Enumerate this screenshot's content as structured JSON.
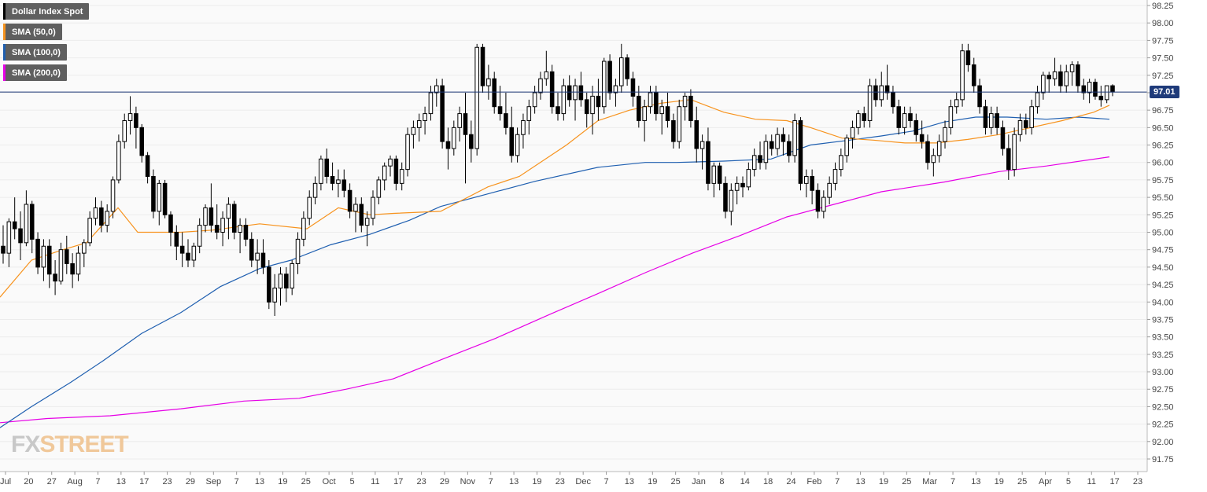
{
  "legend": [
    {
      "label": "Dollar Index Spot",
      "color": "#000000"
    },
    {
      "label": "SMA (50,0)",
      "color": "#f7931e"
    },
    {
      "label": "SMA (100,0)",
      "color": "#1f5fb0"
    },
    {
      "label": "SMA (200,0)",
      "color": "#e600e6"
    }
  ],
  "price_label": "97.01",
  "logo": {
    "part1": "FX",
    "part2": "STREET"
  },
  "chart_data": {
    "type": "candlestick",
    "title": "",
    "ylim": [
      91.5,
      98.35
    ],
    "y_ticks": [
      "98.25",
      "98.00",
      "97.75",
      "97.50",
      "97.25",
      "97.00",
      "96.75",
      "96.50",
      "96.25",
      "96.00",
      "95.75",
      "95.50",
      "95.25",
      "95.00",
      "94.75",
      "94.50",
      "94.25",
      "94.00",
      "93.75",
      "93.50",
      "93.25",
      "93.00",
      "92.75",
      "92.50",
      "92.25",
      "92.00",
      "91.75"
    ],
    "x_ticks": [
      "Jul",
      "20",
      "27",
      "Aug",
      "7",
      "13",
      "17",
      "23",
      "29",
      "Sep",
      "7",
      "13",
      "19",
      "25",
      "Oct",
      "5",
      "11",
      "17",
      "23",
      "29",
      "Nov",
      "7",
      "13",
      "19",
      "23",
      "Dec",
      "7",
      "13",
      "19",
      "25",
      "Jan",
      "8",
      "14",
      "18",
      "24",
      "Feb",
      "7",
      "13",
      "19",
      "25",
      "Mar",
      "7",
      "13",
      "19",
      "25",
      "Apr",
      "5",
      "11",
      "17",
      "23"
    ],
    "current_price": 97.01,
    "candles": [
      [
        94.8,
        95.1,
        94.55,
        94.7
      ],
      [
        94.7,
        95.2,
        94.5,
        95.15
      ],
      [
        95.15,
        95.5,
        94.9,
        95.05
      ],
      [
        95.05,
        95.3,
        94.6,
        94.85
      ],
      [
        94.85,
        95.6,
        94.8,
        95.4
      ],
      [
        95.4,
        95.45,
        94.7,
        94.9
      ],
      [
        94.9,
        95.0,
        94.4,
        94.5
      ],
      [
        94.5,
        94.9,
        94.3,
        94.8
      ],
      [
        94.8,
        94.9,
        94.2,
        94.4
      ],
      [
        94.4,
        94.6,
        94.1,
        94.3
      ],
      [
        94.3,
        94.85,
        94.25,
        94.75
      ],
      [
        94.75,
        94.95,
        94.4,
        94.55
      ],
      [
        94.55,
        94.7,
        94.2,
        94.4
      ],
      [
        94.4,
        94.8,
        94.3,
        94.7
      ],
      [
        94.7,
        94.9,
        94.5,
        94.85
      ],
      [
        94.85,
        95.3,
        94.8,
        95.2
      ],
      [
        95.2,
        95.5,
        95.1,
        95.35
      ],
      [
        95.35,
        95.45,
        95.0,
        95.1
      ],
      [
        95.1,
        95.4,
        95.0,
        95.3
      ],
      [
        95.3,
        95.8,
        95.2,
        95.75
      ],
      [
        95.75,
        96.4,
        95.7,
        96.3
      ],
      [
        96.3,
        96.7,
        96.2,
        96.6
      ],
      [
        96.6,
        96.95,
        96.4,
        96.7
      ],
      [
        96.7,
        96.8,
        96.2,
        96.5
      ],
      [
        96.5,
        96.55,
        96.0,
        96.1
      ],
      [
        96.1,
        96.15,
        95.7,
        95.8
      ],
      [
        95.8,
        95.9,
        95.2,
        95.3
      ],
      [
        95.3,
        95.75,
        95.1,
        95.7
      ],
      [
        95.7,
        95.75,
        95.2,
        95.25
      ],
      [
        95.25,
        95.3,
        94.8,
        95.0
      ],
      [
        95.0,
        95.1,
        94.6,
        94.8
      ],
      [
        94.8,
        95.0,
        94.5,
        94.7
      ],
      [
        94.7,
        94.9,
        94.5,
        94.6
      ],
      [
        94.6,
        94.85,
        94.5,
        94.8
      ],
      [
        94.8,
        95.2,
        94.7,
        95.1
      ],
      [
        95.1,
        95.4,
        95.0,
        95.35
      ],
      [
        95.35,
        95.7,
        95.0,
        95.1
      ],
      [
        95.1,
        95.4,
        94.9,
        95.0
      ],
      [
        95.0,
        95.3,
        94.8,
        95.2
      ],
      [
        95.2,
        95.5,
        94.9,
        95.4
      ],
      [
        95.4,
        95.45,
        94.9,
        95.0
      ],
      [
        95.0,
        95.2,
        94.7,
        95.1
      ],
      [
        95.1,
        95.2,
        94.8,
        94.9
      ],
      [
        94.9,
        95.0,
        94.5,
        94.6
      ],
      [
        94.6,
        94.9,
        94.4,
        94.7
      ],
      [
        94.7,
        94.9,
        94.4,
        94.5
      ],
      [
        94.5,
        94.6,
        93.9,
        94.0
      ],
      [
        94.0,
        94.4,
        93.8,
        94.2
      ],
      [
        94.2,
        94.5,
        93.95,
        94.4
      ],
      [
        94.4,
        94.5,
        94.0,
        94.2
      ],
      [
        94.2,
        94.6,
        94.1,
        94.55
      ],
      [
        94.55,
        95.0,
        94.4,
        94.9
      ],
      [
        94.9,
        95.3,
        94.8,
        95.2
      ],
      [
        95.2,
        95.6,
        95.1,
        95.5
      ],
      [
        95.5,
        95.8,
        95.4,
        95.7
      ],
      [
        95.7,
        96.1,
        95.6,
        96.05
      ],
      [
        96.05,
        96.2,
        95.7,
        95.8
      ],
      [
        95.8,
        96.0,
        95.6,
        95.7
      ],
      [
        95.7,
        95.9,
        95.5,
        95.75
      ],
      [
        95.75,
        95.9,
        95.5,
        95.6
      ],
      [
        95.6,
        95.7,
        95.2,
        95.3
      ],
      [
        95.3,
        95.5,
        95.0,
        95.4
      ],
      [
        95.4,
        95.5,
        95.0,
        95.1
      ],
      [
        95.1,
        95.3,
        94.8,
        95.2
      ],
      [
        95.2,
        95.6,
        95.1,
        95.5
      ],
      [
        95.5,
        95.8,
        95.4,
        95.75
      ],
      [
        95.75,
        96.0,
        95.6,
        95.95
      ],
      [
        95.95,
        96.1,
        95.8,
        96.05
      ],
      [
        96.05,
        96.1,
        95.6,
        95.7
      ],
      [
        95.7,
        96.0,
        95.6,
        95.9
      ],
      [
        95.9,
        96.5,
        95.8,
        96.4
      ],
      [
        96.4,
        96.6,
        96.2,
        96.5
      ],
      [
        96.5,
        96.7,
        96.3,
        96.6
      ],
      [
        96.6,
        96.8,
        96.4,
        96.7
      ],
      [
        96.7,
        97.1,
        96.6,
        97.0
      ],
      [
        97.0,
        97.2,
        96.8,
        97.1
      ],
      [
        97.1,
        97.2,
        96.2,
        96.3
      ],
      [
        96.3,
        96.5,
        95.9,
        96.2
      ],
      [
        96.2,
        96.6,
        96.1,
        96.5
      ],
      [
        96.5,
        96.8,
        96.3,
        96.7
      ],
      [
        96.7,
        97.0,
        95.7,
        96.4
      ],
      [
        96.4,
        96.6,
        96.0,
        96.2
      ],
      [
        96.2,
        97.7,
        96.1,
        97.65
      ],
      [
        97.65,
        97.7,
        97.0,
        97.1
      ],
      [
        97.1,
        97.4,
        96.9,
        97.2
      ],
      [
        97.2,
        97.3,
        96.7,
        96.8
      ],
      [
        96.8,
        97.1,
        96.6,
        96.7
      ],
      [
        96.7,
        97.0,
        96.4,
        96.5
      ],
      [
        96.5,
        96.8,
        96.0,
        96.1
      ],
      [
        96.1,
        96.5,
        96.0,
        96.4
      ],
      [
        96.4,
        96.7,
        96.2,
        96.6
      ],
      [
        96.6,
        96.9,
        96.4,
        96.8
      ],
      [
        96.8,
        97.1,
        96.7,
        97.0
      ],
      [
        97.0,
        97.3,
        96.9,
        97.2
      ],
      [
        97.2,
        97.6,
        97.1,
        97.3
      ],
      [
        97.3,
        97.4,
        96.7,
        96.8
      ],
      [
        96.8,
        97.0,
        96.6,
        96.7
      ],
      [
        96.7,
        97.2,
        96.6,
        97.1
      ],
      [
        97.1,
        97.25,
        96.8,
        96.9
      ],
      [
        96.9,
        97.2,
        96.6,
        97.1
      ],
      [
        97.1,
        97.3,
        96.8,
        96.9
      ],
      [
        96.9,
        97.0,
        96.5,
        96.7
      ],
      [
        96.7,
        97.1,
        96.4,
        96.95
      ],
      [
        96.95,
        97.2,
        96.6,
        96.8
      ],
      [
        96.8,
        97.5,
        96.7,
        97.45
      ],
      [
        97.45,
        97.55,
        96.9,
        97.0
      ],
      [
        97.0,
        97.2,
        96.8,
        97.1
      ],
      [
        97.1,
        97.7,
        97.0,
        97.5
      ],
      [
        97.5,
        97.55,
        97.1,
        97.2
      ],
      [
        97.2,
        97.3,
        96.8,
        96.95
      ],
      [
        96.95,
        97.1,
        96.5,
        96.6
      ],
      [
        96.6,
        96.9,
        96.3,
        96.8
      ],
      [
        96.8,
        97.1,
        96.7,
        97.0
      ],
      [
        97.0,
        97.1,
        96.6,
        96.7
      ],
      [
        96.7,
        96.9,
        96.4,
        96.8
      ],
      [
        96.8,
        97.0,
        96.5,
        96.6
      ],
      [
        96.6,
        96.7,
        96.2,
        96.3
      ],
      [
        96.3,
        96.9,
        96.2,
        96.8
      ],
      [
        96.8,
        97.0,
        96.6,
        96.95
      ],
      [
        96.95,
        97.05,
        96.5,
        96.6
      ],
      [
        96.6,
        96.8,
        96.0,
        96.2
      ],
      [
        96.2,
        96.4,
        95.9,
        96.3
      ],
      [
        96.3,
        96.5,
        95.6,
        95.7
      ],
      [
        95.7,
        96.0,
        95.5,
        95.95
      ],
      [
        95.95,
        96.0,
        95.6,
        95.7
      ],
      [
        95.7,
        95.8,
        95.2,
        95.3
      ],
      [
        95.3,
        95.7,
        95.1,
        95.6
      ],
      [
        95.6,
        95.8,
        95.4,
        95.7
      ],
      [
        95.7,
        95.8,
        95.5,
        95.65
      ],
      [
        95.65,
        96.0,
        95.6,
        95.9
      ],
      [
        95.9,
        96.2,
        95.8,
        96.1
      ],
      [
        96.1,
        96.3,
        95.9,
        96.0
      ],
      [
        96.0,
        96.4,
        95.9,
        96.3
      ],
      [
        96.3,
        96.4,
        96.1,
        96.2
      ],
      [
        96.2,
        96.5,
        96.1,
        96.4
      ],
      [
        96.4,
        96.5,
        96.1,
        96.3
      ],
      [
        96.3,
        96.4,
        96.0,
        96.1
      ],
      [
        96.1,
        96.7,
        96.0,
        96.6
      ],
      [
        96.6,
        96.65,
        95.6,
        95.7
      ],
      [
        95.7,
        95.9,
        95.5,
        95.8
      ],
      [
        95.8,
        95.9,
        95.4,
        95.6
      ],
      [
        95.6,
        95.7,
        95.2,
        95.3
      ],
      [
        95.3,
        95.6,
        95.2,
        95.5
      ],
      [
        95.5,
        95.8,
        95.4,
        95.7
      ],
      [
        95.7,
        96.0,
        95.6,
        95.9
      ],
      [
        95.9,
        96.2,
        95.8,
        96.1
      ],
      [
        96.1,
        96.4,
        96.0,
        96.35
      ],
      [
        96.35,
        96.6,
        96.2,
        96.5
      ],
      [
        96.5,
        96.75,
        96.4,
        96.7
      ],
      [
        96.7,
        96.8,
        96.5,
        96.6
      ],
      [
        96.6,
        97.2,
        96.5,
        97.1
      ],
      [
        97.1,
        97.2,
        96.8,
        96.9
      ],
      [
        96.9,
        97.3,
        96.8,
        97.1
      ],
      [
        97.1,
        97.4,
        96.9,
        97.0
      ],
      [
        97.0,
        97.1,
        96.7,
        96.8
      ],
      [
        96.8,
        96.9,
        96.4,
        96.5
      ],
      [
        96.5,
        96.8,
        96.4,
        96.7
      ],
      [
        96.7,
        96.8,
        96.5,
        96.6
      ],
      [
        96.6,
        96.7,
        96.3,
        96.4
      ],
      [
        96.4,
        96.6,
        96.2,
        96.3
      ],
      [
        96.3,
        96.4,
        95.9,
        96.0
      ],
      [
        96.0,
        96.2,
        95.8,
        96.1
      ],
      [
        96.1,
        96.4,
        96.0,
        96.3
      ],
      [
        96.3,
        96.6,
        96.2,
        96.5
      ],
      [
        96.5,
        96.9,
        96.4,
        96.8
      ],
      [
        96.8,
        97.0,
        96.7,
        96.9
      ],
      [
        96.9,
        97.7,
        96.8,
        97.6
      ],
      [
        97.6,
        97.7,
        97.3,
        97.4
      ],
      [
        97.4,
        97.5,
        97.0,
        97.1
      ],
      [
        97.1,
        97.2,
        96.7,
        96.8
      ],
      [
        96.8,
        96.9,
        96.4,
        96.5
      ],
      [
        96.5,
        96.8,
        96.4,
        96.7
      ],
      [
        96.7,
        96.8,
        96.4,
        96.5
      ],
      [
        96.5,
        96.6,
        96.1,
        96.2
      ],
      [
        96.2,
        96.4,
        95.75,
        95.9
      ],
      [
        95.9,
        96.5,
        95.8,
        96.4
      ],
      [
        96.4,
        96.7,
        96.3,
        96.6
      ],
      [
        96.6,
        96.7,
        96.4,
        96.5
      ],
      [
        96.5,
        96.9,
        96.4,
        96.8
      ],
      [
        96.8,
        97.1,
        96.7,
        97.0
      ],
      [
        97.0,
        97.3,
        96.9,
        97.25
      ],
      [
        97.25,
        97.3,
        97.0,
        97.2
      ],
      [
        97.2,
        97.5,
        97.1,
        97.3
      ],
      [
        97.3,
        97.4,
        97.0,
        97.1
      ],
      [
        97.1,
        97.4,
        97.0,
        97.3
      ],
      [
        97.3,
        97.45,
        97.1,
        97.4
      ],
      [
        97.4,
        97.45,
        97.0,
        97.1
      ],
      [
        97.1,
        97.2,
        96.9,
        97.0
      ],
      [
        97.0,
        97.2,
        96.85,
        97.15
      ],
      [
        97.15,
        97.2,
        96.9,
        96.95
      ],
      [
        96.95,
        97.1,
        96.8,
        96.9
      ],
      [
        96.9,
        97.1,
        96.85,
        97.1
      ],
      [
        97.1,
        97.12,
        96.95,
        97.01
      ]
    ],
    "sma_50": [
      [
        0,
        94.07
      ],
      [
        40,
        94.6
      ],
      [
        80,
        94.75
      ],
      [
        110,
        94.85
      ],
      [
        150,
        95.35
      ],
      [
        175,
        95.0
      ],
      [
        230,
        95.0
      ],
      [
        270,
        95.03
      ],
      [
        330,
        95.12
      ],
      [
        390,
        95.05
      ],
      [
        430,
        95.35
      ],
      [
        470,
        95.25
      ],
      [
        500,
        95.27
      ],
      [
        560,
        95.3
      ],
      [
        620,
        95.65
      ],
      [
        660,
        95.8
      ],
      [
        720,
        96.25
      ],
      [
        760,
        96.6
      ],
      [
        800,
        96.75
      ],
      [
        840,
        96.85
      ],
      [
        878,
        96.9
      ],
      [
        920,
        96.72
      ],
      [
        960,
        96.62
      ],
      [
        1000,
        96.6
      ],
      [
        1030,
        96.5
      ],
      [
        1070,
        96.35
      ],
      [
        1110,
        96.32
      ],
      [
        1150,
        96.28
      ],
      [
        1190,
        96.28
      ],
      [
        1230,
        96.33
      ],
      [
        1270,
        96.4
      ],
      [
        1310,
        96.5
      ],
      [
        1350,
        96.6
      ],
      [
        1390,
        96.72
      ],
      [
        1410,
        96.82
      ]
    ],
    "sma_100": [
      [
        0,
        92.2
      ],
      [
        40,
        92.5
      ],
      [
        90,
        92.85
      ],
      [
        130,
        93.15
      ],
      [
        180,
        93.55
      ],
      [
        230,
        93.85
      ],
      [
        280,
        94.22
      ],
      [
        330,
        94.48
      ],
      [
        370,
        94.6
      ],
      [
        420,
        94.82
      ],
      [
        470,
        94.97
      ],
      [
        520,
        95.17
      ],
      [
        560,
        95.37
      ],
      [
        620,
        95.55
      ],
      [
        680,
        95.73
      ],
      [
        760,
        95.93
      ],
      [
        820,
        96.0
      ],
      [
        860,
        96.0
      ],
      [
        920,
        96.02
      ],
      [
        980,
        96.05
      ],
      [
        1030,
        96.25
      ],
      [
        1080,
        96.32
      ],
      [
        1120,
        96.38
      ],
      [
        1160,
        96.45
      ],
      [
        1200,
        96.58
      ],
      [
        1240,
        96.65
      ],
      [
        1280,
        96.65
      ],
      [
        1330,
        96.62
      ],
      [
        1370,
        96.65
      ],
      [
        1410,
        96.62
      ]
    ],
    "sma_200": [
      [
        0,
        92.27
      ],
      [
        60,
        92.33
      ],
      [
        140,
        92.37
      ],
      [
        230,
        92.47
      ],
      [
        310,
        92.58
      ],
      [
        380,
        92.62
      ],
      [
        440,
        92.75
      ],
      [
        500,
        92.9
      ],
      [
        560,
        93.17
      ],
      [
        630,
        93.48
      ],
      [
        700,
        93.83
      ],
      [
        760,
        94.12
      ],
      [
        820,
        94.42
      ],
      [
        880,
        94.7
      ],
      [
        940,
        94.95
      ],
      [
        1000,
        95.22
      ],
      [
        1060,
        95.4
      ],
      [
        1120,
        95.58
      ],
      [
        1200,
        95.72
      ],
      [
        1270,
        95.87
      ],
      [
        1330,
        95.95
      ],
      [
        1410,
        96.08
      ]
    ]
  }
}
